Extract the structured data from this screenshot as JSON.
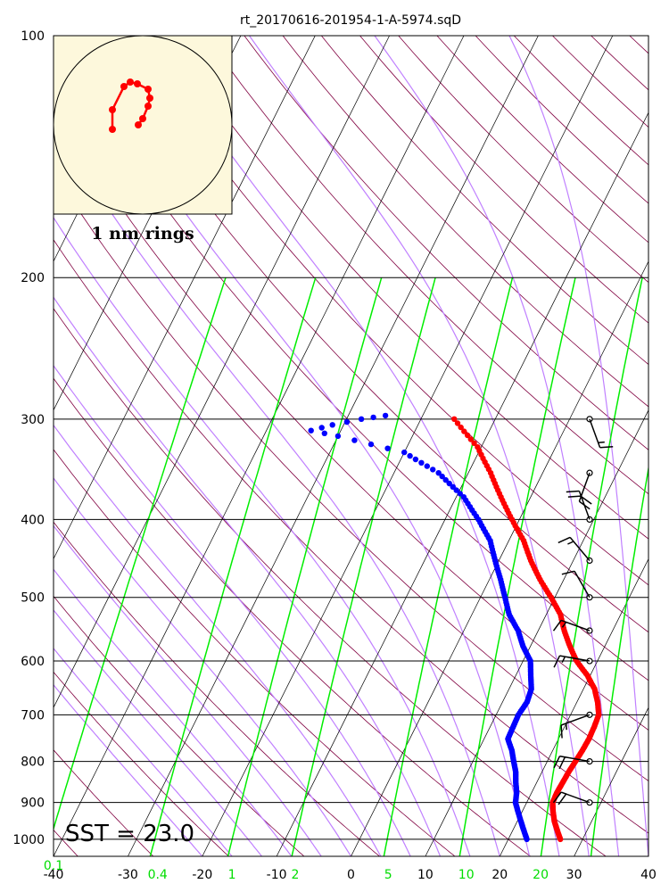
{
  "chart_data": {
    "type": "scatter",
    "title": "rt_20170616-201954-1-A-5974.sqD",
    "x_range": [
      -40,
      40
    ],
    "pressure_range": [
      1050,
      100
    ],
    "pressure_levels": [
      100,
      200,
      300,
      400,
      500,
      600,
      700,
      800,
      900,
      1000
    ],
    "pressure_tick_labels": [
      "100",
      "200",
      "300",
      "400",
      "500",
      "600",
      "700",
      "800",
      "900",
      "1000"
    ],
    "temp_ticks": [
      -40,
      -30,
      -20,
      -10,
      0,
      10,
      20,
      30,
      40
    ],
    "temp_tick_labels": [
      "-40",
      "-30",
      "-20",
      "-10",
      "0",
      "10",
      "20",
      "30",
      "40"
    ],
    "mixing_ratio_ticks": [
      {
        "label": "0.1",
        "temp": -40
      },
      {
        "label": "0.4",
        "temp": -26
      },
      {
        "label": "1",
        "temp": -16
      },
      {
        "label": "2",
        "temp": -7.5
      },
      {
        "label": "5",
        "temp": 5
      },
      {
        "label": "10",
        "temp": 15.5
      },
      {
        "label": "20",
        "temp": 25.5
      }
    ],
    "sst_text": "SST = 23.0",
    "hodograph_caption": "1 nm rings",
    "colors": {
      "temperature": "#ff0000",
      "dewpoint": "#0000ff",
      "isotherm": "#000000",
      "dry_adiabat": "#800040",
      "moist_adiabat": "#c080ff",
      "mixing_ratio": "#00ee00",
      "hodograph_bg": "#fdf8dc",
      "mixing_label": "#00dd00"
    },
    "temperature_profile": [
      [
        1000,
        27.0
      ],
      [
        975,
        26.0
      ],
      [
        950,
        25.0
      ],
      [
        925,
        24.2
      ],
      [
        900,
        23.5
      ],
      [
        875,
        23.4
      ],
      [
        850,
        23.5
      ],
      [
        825,
        23.6
      ],
      [
        800,
        23.8
      ],
      [
        775,
        24.0
      ],
      [
        750,
        24.1
      ],
      [
        725,
        24.0
      ],
      [
        700,
        23.8
      ],
      [
        675,
        22.8
      ],
      [
        650,
        21.5
      ],
      [
        625,
        19.6
      ],
      [
        600,
        17.2
      ],
      [
        575,
        15.3
      ],
      [
        550,
        13.5
      ],
      [
        525,
        11.9
      ],
      [
        500,
        9.5
      ],
      [
        475,
        6.8
      ],
      [
        450,
        4.3
      ],
      [
        425,
        2.0
      ],
      [
        400,
        -1.0
      ],
      [
        375,
        -4.0
      ],
      [
        350,
        -7.0
      ],
      [
        325,
        -10.5
      ],
      [
        300,
        -15.5
      ]
    ],
    "dewpoint_profile": [
      [
        1000,
        22.5
      ],
      [
        975,
        21.5
      ],
      [
        950,
        20.5
      ],
      [
        925,
        19.5
      ],
      [
        900,
        18.5
      ],
      [
        875,
        18.0
      ],
      [
        850,
        17.2
      ],
      [
        825,
        16.5
      ],
      [
        800,
        15.5
      ],
      [
        775,
        14.5
      ],
      [
        750,
        13.2
      ],
      [
        700,
        13.0
      ],
      [
        675,
        13.3
      ],
      [
        650,
        13.0
      ],
      [
        625,
        12.0
      ],
      [
        600,
        11.0
      ],
      [
        575,
        9.0
      ],
      [
        550,
        7.3
      ],
      [
        525,
        5.0
      ],
      [
        500,
        3.3
      ],
      [
        475,
        1.5
      ],
      [
        450,
        -0.5
      ],
      [
        425,
        -2.5
      ],
      [
        400,
        -5.5
      ],
      [
        375,
        -9.0
      ],
      [
        350,
        -14.0
      ],
      [
        330,
        -20.0
      ],
      [
        315,
        -30.0
      ],
      [
        310,
        -34.0
      ],
      [
        305,
        -31.5
      ],
      [
        300,
        -28.0
      ],
      [
        297,
        -25.0
      ]
    ],
    "hodograph_points": [
      [
        -34,
        145
      ],
      [
        -34,
        123
      ],
      [
        -21,
        97
      ],
      [
        -14,
        92
      ],
      [
        -6,
        94
      ],
      [
        6,
        100
      ],
      [
        8,
        110
      ],
      [
        6,
        119
      ],
      [
        0,
        133
      ],
      [
        -5,
        140
      ]
    ],
    "wind_barbs": [
      {
        "p": 300,
        "dir": 160,
        "spd": 15
      },
      {
        "p": 350,
        "dir": 200,
        "spd": 20
      },
      {
        "p": 400,
        "dir": 340,
        "spd": 20
      },
      {
        "p": 450,
        "dir": 320,
        "spd": 15
      },
      {
        "p": 500,
        "dir": 330,
        "spd": 10
      },
      {
        "p": 550,
        "dir": 290,
        "spd": 15
      },
      {
        "p": 600,
        "dir": 280,
        "spd": 15
      },
      {
        "p": 700,
        "dir": 250,
        "spd": 15
      },
      {
        "p": 800,
        "dir": 280,
        "spd": 20
      },
      {
        "p": 900,
        "dir": 290,
        "spd": 20
      }
    ]
  }
}
